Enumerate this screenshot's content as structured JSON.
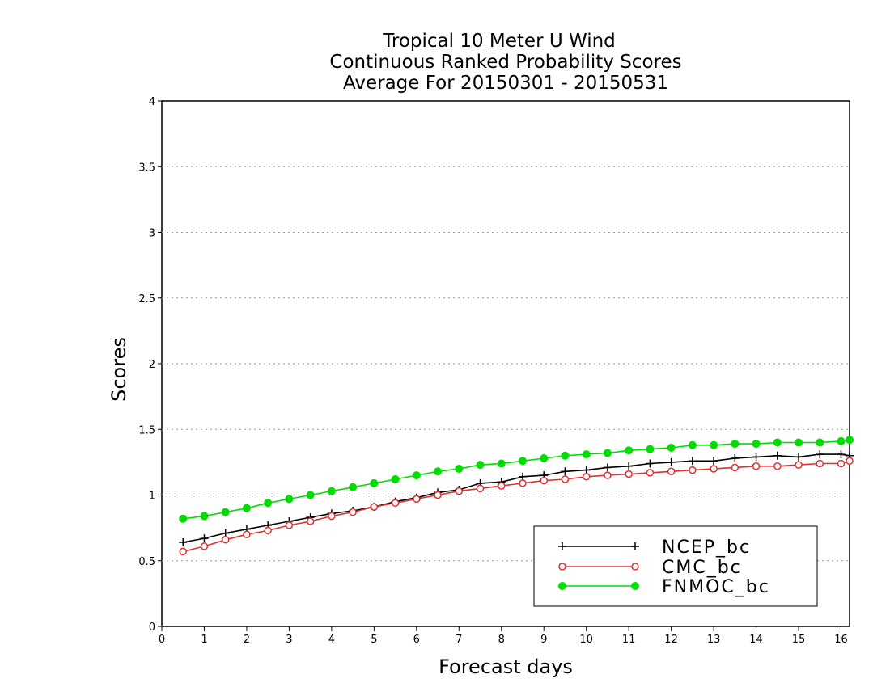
{
  "chart_data": {
    "type": "line",
    "title_lines": [
      "Tropical 10 Meter U Wind",
      "Continuous Ranked Probability Scores",
      "Average For 20150301 - 20150531"
    ],
    "xlabel": "Forecast days",
    "ylabel": "Scores",
    "xlim": [
      0,
      16.2
    ],
    "ylim": [
      0,
      4
    ],
    "x_ticks": [
      "0",
      "1",
      "2",
      "3",
      "4",
      "5",
      "6",
      "7",
      "8",
      "9",
      "10",
      "11",
      "12",
      "13",
      "14",
      "15",
      "16"
    ],
    "y_ticks": [
      "0",
      "0.5",
      "1",
      "1.5",
      "2",
      "2.5",
      "3",
      "3.5",
      "4"
    ],
    "grid": true,
    "legend_position": "bottom-right",
    "x": [
      0.5,
      1,
      1.5,
      2,
      2.5,
      3,
      3.5,
      4,
      4.5,
      5,
      5.5,
      6,
      6.5,
      7,
      7.5,
      8,
      8.5,
      9,
      9.5,
      10,
      10.5,
      11,
      11.5,
      12,
      12.5,
      13,
      13.5,
      14,
      14.5,
      15,
      15.5,
      16,
      16.2
    ],
    "series": [
      {
        "name": "NCEP_bc",
        "color": "#000000",
        "marker": "plus",
        "values": [
          0.64,
          0.67,
          0.71,
          0.74,
          0.77,
          0.8,
          0.83,
          0.86,
          0.88,
          0.91,
          0.95,
          0.98,
          1.02,
          1.04,
          1.09,
          1.1,
          1.14,
          1.15,
          1.18,
          1.19,
          1.21,
          1.22,
          1.24,
          1.25,
          1.26,
          1.26,
          1.28,
          1.29,
          1.3,
          1.29,
          1.31,
          1.31,
          1.3
        ]
      },
      {
        "name": "CMC_bc",
        "color": "#e03030",
        "marker": "open-circle",
        "values": [
          0.57,
          0.61,
          0.66,
          0.7,
          0.73,
          0.77,
          0.8,
          0.84,
          0.87,
          0.91,
          0.94,
          0.97,
          1.0,
          1.03,
          1.05,
          1.07,
          1.09,
          1.11,
          1.12,
          1.14,
          1.15,
          1.16,
          1.17,
          1.18,
          1.19,
          1.2,
          1.21,
          1.22,
          1.22,
          1.23,
          1.24,
          1.24,
          1.26
        ]
      },
      {
        "name": "FNMOC_bc",
        "color": "#00dd00",
        "marker": "filled-circle",
        "values": [
          0.82,
          0.84,
          0.87,
          0.9,
          0.94,
          0.97,
          1.0,
          1.03,
          1.06,
          1.09,
          1.12,
          1.15,
          1.18,
          1.2,
          1.23,
          1.24,
          1.26,
          1.28,
          1.3,
          1.31,
          1.32,
          1.34,
          1.35,
          1.36,
          1.38,
          1.38,
          1.39,
          1.39,
          1.4,
          1.4,
          1.4,
          1.41,
          1.42
        ]
      }
    ]
  }
}
